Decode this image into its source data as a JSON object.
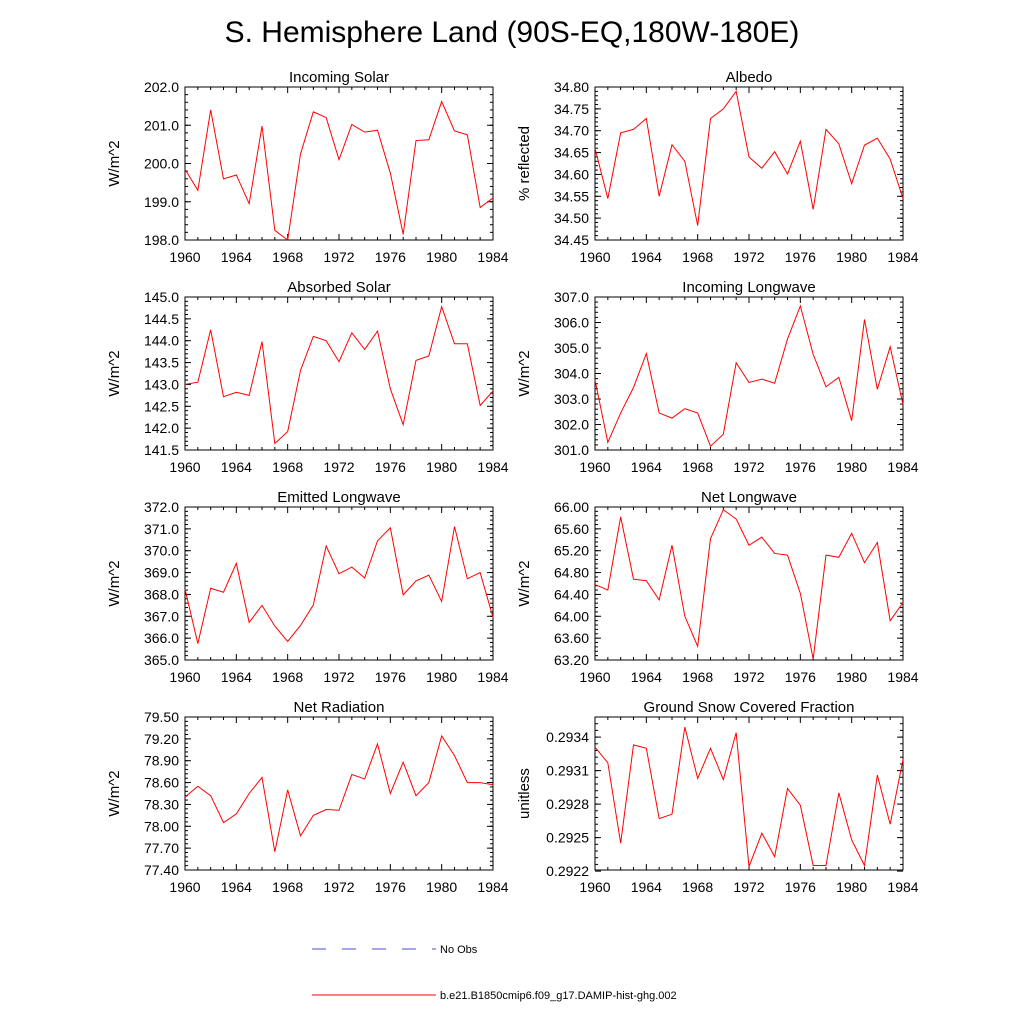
{
  "figure": {
    "title": "S. Hemisphere Land (90S-EQ,180W-180E)",
    "legend": [
      {
        "label": "No Obs",
        "color": "#4b4bd6",
        "style": "dashed"
      },
      {
        "label": "b.e21.B1850cmip6.f09_g17.DAMIP-hist-ghg.002",
        "color": "#ff0000",
        "style": "solid"
      }
    ]
  },
  "chart_data": [
    {
      "type": "line",
      "title": "Incoming Solar",
      "ylabel": "W/m^2",
      "xlim": [
        1960,
        1984
      ],
      "xticks": [
        1960,
        1964,
        1968,
        1972,
        1976,
        1980,
        1984
      ],
      "ylim": [
        198.0,
        202.0
      ],
      "yticks": [
        "198.0",
        "199.0",
        "200.0",
        "201.0",
        "202.0"
      ],
      "x": [
        1960,
        1961,
        1962,
        1963,
        1964,
        1965,
        1966,
        1967,
        1968,
        1969,
        1970,
        1971,
        1972,
        1973,
        1974,
        1975,
        1976,
        1977,
        1978,
        1979,
        1980,
        1981,
        1982,
        1983,
        1984
      ],
      "series": [
        {
          "color": "#ff0000",
          "values": [
            199.85,
            199.3,
            201.4,
            199.6,
            199.7,
            198.95,
            200.98,
            198.25,
            198.0,
            200.25,
            201.35,
            201.2,
            200.1,
            201.02,
            200.82,
            200.87,
            199.75,
            198.15,
            200.6,
            200.62,
            201.62,
            200.85,
            200.75,
            198.85,
            199.1
          ]
        }
      ]
    },
    {
      "type": "line",
      "title": "Albedo",
      "ylabel": "% reflected",
      "xlim": [
        1960,
        1984
      ],
      "xticks": [
        1960,
        1964,
        1968,
        1972,
        1976,
        1980,
        1984
      ],
      "ylim": [
        34.45,
        34.8
      ],
      "yticks": [
        "34.45",
        "34.50",
        "34.55",
        "34.60",
        "34.65",
        "34.70",
        "34.75",
        "34.80"
      ],
      "x": [
        1960,
        1961,
        1962,
        1963,
        1964,
        1965,
        1966,
        1967,
        1968,
        1969,
        1970,
        1971,
        1972,
        1973,
        1974,
        1975,
        1976,
        1977,
        1978,
        1979,
        1980,
        1981,
        1982,
        1983,
        1984
      ],
      "series": [
        {
          "color": "#ff0000",
          "values": [
            34.66,
            34.545,
            34.695,
            34.703,
            34.728,
            34.55,
            34.668,
            34.63,
            34.483,
            34.728,
            34.75,
            34.79,
            34.64,
            34.614,
            34.652,
            34.601,
            34.676,
            34.52,
            34.703,
            34.67,
            34.579,
            34.667,
            34.683,
            34.635,
            34.545
          ]
        }
      ]
    },
    {
      "type": "line",
      "title": "Absorbed Solar",
      "ylabel": "W/m^2",
      "xlim": [
        1960,
        1984
      ],
      "xticks": [
        1960,
        1964,
        1968,
        1972,
        1976,
        1980,
        1984
      ],
      "ylim": [
        141.5,
        145.0
      ],
      "yticks": [
        "141.5",
        "142.0",
        "142.5",
        "143.0",
        "143.5",
        "144.0",
        "144.5",
        "145.0"
      ],
      "x": [
        1960,
        1961,
        1962,
        1963,
        1964,
        1965,
        1966,
        1967,
        1968,
        1969,
        1970,
        1971,
        1972,
        1973,
        1974,
        1975,
        1976,
        1977,
        1978,
        1979,
        1980,
        1981,
        1982,
        1983,
        1984
      ],
      "series": [
        {
          "color": "#ff0000",
          "values": [
            143.0,
            143.05,
            144.25,
            142.72,
            142.82,
            142.75,
            143.98,
            141.65,
            141.92,
            143.32,
            144.1,
            144.0,
            143.52,
            144.18,
            143.8,
            144.22,
            142.9,
            142.08,
            143.55,
            143.65,
            144.78,
            143.93,
            143.93,
            142.52,
            142.85
          ]
        }
      ]
    },
    {
      "type": "line",
      "title": "Incoming Longwave",
      "ylabel": "W/m^2",
      "xlim": [
        1960,
        1984
      ],
      "xticks": [
        1960,
        1964,
        1968,
        1972,
        1976,
        1980,
        1984
      ],
      "ylim": [
        301.0,
        307.0
      ],
      "yticks": [
        "301.0",
        "302.0",
        "303.0",
        "304.0",
        "305.0",
        "306.0",
        "307.0"
      ],
      "x": [
        1960,
        1961,
        1962,
        1963,
        1964,
        1965,
        1966,
        1967,
        1968,
        1969,
        1970,
        1971,
        1972,
        1973,
        1974,
        1975,
        1976,
        1977,
        1978,
        1979,
        1980,
        1981,
        1982,
        1983,
        1984
      ],
      "series": [
        {
          "color": "#ff0000",
          "values": [
            303.75,
            301.3,
            302.45,
            303.45,
            304.78,
            302.45,
            302.25,
            302.62,
            302.45,
            301.15,
            301.62,
            304.42,
            303.65,
            303.78,
            303.62,
            305.35,
            306.65,
            304.75,
            303.48,
            303.85,
            302.15,
            306.12,
            303.38,
            305.05,
            302.78
          ]
        }
      ]
    },
    {
      "type": "line",
      "title": "Emitted Longwave",
      "ylabel": "W/m^2",
      "xlim": [
        1960,
        1984
      ],
      "xticks": [
        1960,
        1964,
        1968,
        1972,
        1976,
        1980,
        1984
      ],
      "ylim": [
        365.0,
        372.0
      ],
      "yticks": [
        "365.0",
        "366.0",
        "367.0",
        "368.0",
        "369.0",
        "370.0",
        "371.0",
        "372.0"
      ],
      "x": [
        1960,
        1961,
        1962,
        1963,
        1964,
        1965,
        1966,
        1967,
        1968,
        1969,
        1970,
        1971,
        1972,
        1973,
        1974,
        1975,
        1976,
        1977,
        1978,
        1979,
        1980,
        1981,
        1982,
        1983,
        1984
      ],
      "series": [
        {
          "color": "#ff0000",
          "values": [
            368.25,
            365.75,
            368.28,
            368.1,
            369.42,
            366.72,
            367.5,
            366.55,
            365.85,
            366.58,
            367.52,
            370.22,
            368.95,
            369.25,
            368.75,
            370.45,
            371.05,
            367.98,
            368.62,
            368.88,
            367.68,
            371.1,
            368.72,
            369.0,
            366.95
          ]
        }
      ]
    },
    {
      "type": "line",
      "title": "Net Longwave",
      "ylabel": "W/m^2",
      "xlim": [
        1960,
        1984
      ],
      "xticks": [
        1960,
        1964,
        1968,
        1972,
        1976,
        1980,
        1984
      ],
      "ylim": [
        63.2,
        66.0
      ],
      "yticks": [
        "63.20",
        "63.60",
        "64.00",
        "64.40",
        "64.80",
        "65.20",
        "65.60",
        "66.00"
      ],
      "x": [
        1960,
        1961,
        1962,
        1963,
        1964,
        1965,
        1966,
        1967,
        1968,
        1969,
        1970,
        1971,
        1972,
        1973,
        1974,
        1975,
        1976,
        1977,
        1978,
        1979,
        1980,
        1981,
        1982,
        1983,
        1984
      ],
      "series": [
        {
          "color": "#ff0000",
          "values": [
            64.58,
            64.48,
            65.82,
            64.68,
            64.65,
            64.3,
            65.3,
            64.0,
            63.45,
            65.42,
            65.95,
            65.78,
            65.3,
            65.45,
            65.15,
            65.12,
            64.42,
            63.22,
            65.12,
            65.08,
            65.52,
            64.98,
            65.35,
            63.92,
            64.25
          ]
        }
      ]
    },
    {
      "type": "line",
      "title": "Net Radiation",
      "ylabel": "W/m^2",
      "xlim": [
        1960,
        1984
      ],
      "xticks": [
        1960,
        1964,
        1968,
        1972,
        1976,
        1980,
        1984
      ],
      "ylim": [
        77.4,
        79.5
      ],
      "yticks": [
        "77.40",
        "77.70",
        "78.00",
        "78.30",
        "78.60",
        "78.90",
        "79.20",
        "79.50"
      ],
      "x": [
        1960,
        1961,
        1962,
        1963,
        1964,
        1965,
        1966,
        1967,
        1968,
        1969,
        1970,
        1971,
        1972,
        1973,
        1974,
        1975,
        1976,
        1977,
        1978,
        1979,
        1980,
        1981,
        1982,
        1983,
        1984
      ],
      "series": [
        {
          "color": "#ff0000",
          "values": [
            78.4,
            78.55,
            78.42,
            78.05,
            78.17,
            78.45,
            78.67,
            77.65,
            78.5,
            77.87,
            78.15,
            78.23,
            78.22,
            78.71,
            78.65,
            79.13,
            78.45,
            78.88,
            78.42,
            78.6,
            79.24,
            78.97,
            78.6,
            78.6,
            78.57
          ]
        }
      ]
    },
    {
      "type": "line",
      "title": "Ground Snow Covered Fraction",
      "ylabel": "unitless",
      "xlim": [
        1960,
        1984
      ],
      "xticks": [
        1960,
        1964,
        1968,
        1972,
        1976,
        1980,
        1984
      ],
      "ylim": [
        0.29221,
        0.29358
      ],
      "yticks": [
        "0.2922",
        "0.2925",
        "0.2928",
        "0.2931",
        "0.2934"
      ],
      "ytick_values": [
        0.2922,
        0.2925,
        0.2928,
        0.2931,
        0.2934
      ],
      "x": [
        1960,
        1961,
        1962,
        1963,
        1964,
        1965,
        1966,
        1967,
        1968,
        1969,
        1970,
        1971,
        1972,
        1973,
        1974,
        1975,
        1976,
        1977,
        1978,
        1979,
        1980,
        1981,
        1982,
        1983,
        1984
      ],
      "series": [
        {
          "color": "#ff0000",
          "values": [
            0.29331,
            0.29317,
            0.29245,
            0.29333,
            0.2933,
            0.29267,
            0.29271,
            0.29349,
            0.29303,
            0.2933,
            0.29302,
            0.29344,
            0.29224,
            0.29254,
            0.29233,
            0.29294,
            0.29279,
            0.29225,
            0.29225,
            0.2929,
            0.29248,
            0.29225,
            0.29306,
            0.29262,
            0.2932
          ]
        }
      ]
    }
  ]
}
